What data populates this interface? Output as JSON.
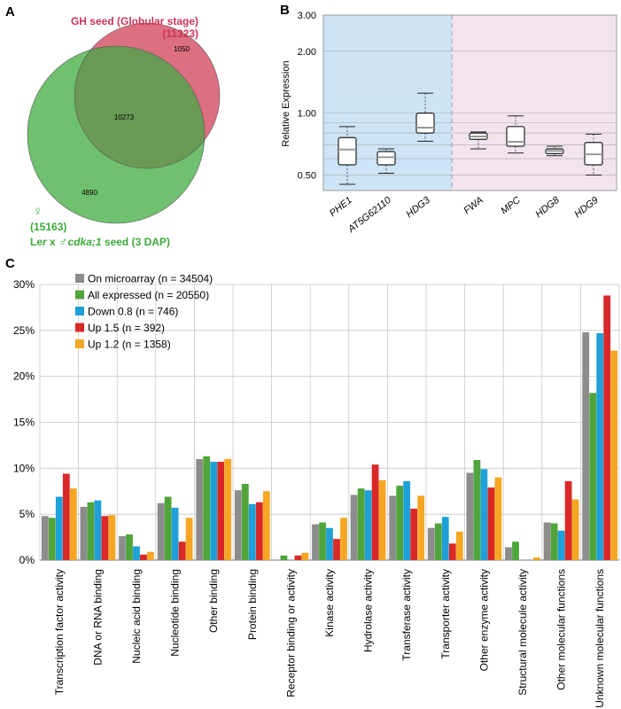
{
  "panels": {
    "a": {
      "letter": "A"
    },
    "b": {
      "letter": "B"
    },
    "c": {
      "letter": "C"
    }
  },
  "colors": {
    "venn_gh": "#dc6f80",
    "venn_ler": "#6fc06f",
    "venn_overlap": "#6a9a55",
    "venn_gh_text": "#cc3355",
    "venn_ler_text": "#3aaa3a",
    "box_bg_left": "#cce4f6",
    "box_bg_right": "#f3e3ef",
    "series": [
      "#8c8c8c",
      "#4fa53a",
      "#1ea0d8",
      "#d92828",
      "#f5a623"
    ]
  },
  "chart_data": [
    {
      "type": "venn",
      "sets": [
        {
          "name_line1": "GH seed (Globular stage)",
          "name_line2": "(11323)",
          "size": 11323
        },
        {
          "name_symbol": "♀",
          "name_line1": "(15163)",
          "name_line2_parts": [
            "Le",
            "r",
            " x ",
            "♂",
            "cdka;1",
            " seed (3 DAP)"
          ],
          "size": 15163
        }
      ],
      "regions": {
        "gh_only": "1050",
        "both": "10273",
        "ler_only": "4890"
      }
    },
    {
      "type": "boxplot",
      "ylabel": "Relative Expression",
      "yscale": "log",
      "ylim": [
        0.42,
        3.0
      ],
      "yticks": [
        "0.50",
        "1.00",
        "2.00",
        "3.00"
      ],
      "groups": [
        {
          "label": "PHE1",
          "min": 0.45,
          "q1": 0.56,
          "median": 0.665,
          "q3": 0.76,
          "max": 0.86
        },
        {
          "label": "AT5G62110",
          "min": 0.51,
          "q1": 0.56,
          "median": 0.61,
          "q3": 0.65,
          "max": 0.67
        },
        {
          "label": "HDG3",
          "min": 0.73,
          "q1": 0.8,
          "median": 0.85,
          "q3": 1.0,
          "max": 1.25
        },
        {
          "label": "FWA",
          "min": 0.67,
          "q1": 0.745,
          "median": 0.77,
          "q3": 0.8,
          "max": 0.81
        },
        {
          "label": "MPC",
          "min": 0.64,
          "q1": 0.69,
          "median": 0.725,
          "q3": 0.86,
          "max": 0.97
        },
        {
          "label": "HDG8",
          "min": 0.62,
          "q1": 0.635,
          "median": 0.655,
          "q3": 0.67,
          "max": 0.69
        },
        {
          "label": "HDG9",
          "min": 0.5,
          "q1": 0.56,
          "median": 0.63,
          "q3": 0.72,
          "max": 0.79
        }
      ]
    },
    {
      "type": "bar",
      "ylim": [
        0,
        30
      ],
      "yticks": [
        "0%",
        "5%",
        "10%",
        "15%",
        "20%",
        "25%",
        "30%"
      ],
      "series": [
        {
          "name": "On microarray (n = 34504)",
          "values": [
            4.8,
            5.8,
            2.6,
            6.2,
            11.0,
            7.6,
            0,
            3.9,
            7.1,
            7.0,
            3.5,
            9.5,
            1.4,
            4.1,
            24.8
          ]
        },
        {
          "name": "All expressed (n = 20550)",
          "values": [
            4.6,
            6.3,
            2.8,
            6.9,
            11.3,
            8.3,
            0.5,
            4.1,
            7.8,
            8.1,
            4.0,
            10.9,
            2.0,
            4.0,
            18.2
          ]
        },
        {
          "name": "Down 0.8 (n = 746)",
          "values": [
            6.9,
            6.5,
            1.5,
            5.7,
            10.7,
            6.1,
            0,
            3.5,
            7.6,
            8.6,
            4.7,
            9.9,
            0,
            3.2,
            24.7
          ]
        },
        {
          "name": "Up 1.5 (n = 392)",
          "values": [
            9.4,
            4.8,
            0.6,
            2.0,
            10.7,
            6.3,
            0.5,
            2.3,
            10.4,
            5.6,
            1.8,
            7.9,
            0,
            8.6,
            28.8
          ]
        },
        {
          "name": "Up 1.2 (n = 1358)",
          "values": [
            7.8,
            4.9,
            0.9,
            4.6,
            11.0,
            7.5,
            0.8,
            4.6,
            8.7,
            7.0,
            3.1,
            9.0,
            0.3,
            6.6,
            22.8
          ]
        }
      ],
      "categories": [
        "Transcription factor activity",
        "DNA or RNA binding",
        "Nucleic acid binding",
        "Nucleotide binding",
        "Other binding",
        "Protein binding",
        "Receptor binding or activity",
        "Kinase activity",
        "Hydrolase activity",
        "Transferase activity",
        "Transporter activity",
        "Other enzyme activity",
        "Structural molecule activity",
        "Other molecular functions",
        "Unknown molecular functions"
      ],
      "legend_position": "top-left",
      "grid": true
    }
  ]
}
